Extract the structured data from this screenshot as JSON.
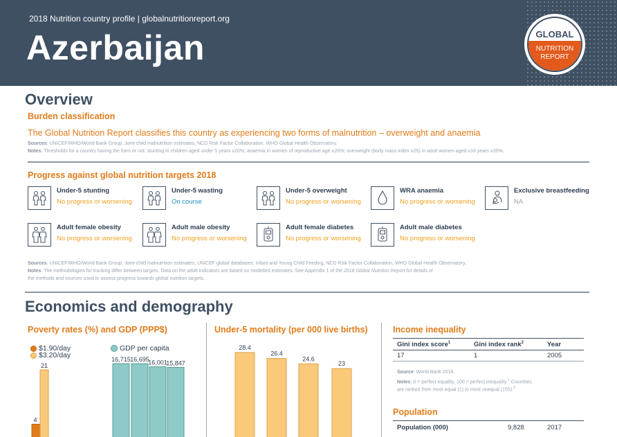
{
  "header": {
    "subtitle": "2018 Nutrition country profile  |  globalnutritionreport.org",
    "country": "Azerbaijan",
    "logo_top": "GLOBAL",
    "logo_mid": "NUTRITION",
    "logo_bot": "REPORT"
  },
  "overview": {
    "title": "Overview",
    "burden_heading": "Burden classification",
    "burden_text": "The Global Nutrition Report classifies this country as experiencing two forms of malnutrition – overweight and anaemia",
    "sources_label": "Sources",
    "sources_text": ": UNICEF/WHO/World Bank Group: Joint child malnutrition estimates, NCD Risk Factor Collaboration, WHO Global Health Observatory.",
    "notes_label": "Notes",
    "notes_text": ": Thresholds for a country having the form or not: stunting in children aged under 5 years ≥20%; anaemia in women of reproductive age ≥20%; overweight (body mass index ≥25) in adult women aged ≥18 years ≥35%.",
    "progress_heading": "Progress against global nutrition targets 2018",
    "targets": [
      {
        "name": "Under-5 stunting",
        "status": "No progress or worsening",
        "color": "#f0a020",
        "icon": "children-icon"
      },
      {
        "name": "Under-5 wasting",
        "status": "On course",
        "color": "#1f8fc4",
        "icon": "children-icon"
      },
      {
        "name": "Under-5 overweight",
        "status": "No progress or worsening",
        "color": "#f0a020",
        "icon": "children-icon"
      },
      {
        "name": "WRA anaemia",
        "status": "No progress or worsening",
        "color": "#f0a020",
        "icon": "blood-drop-icon"
      },
      {
        "name": "Exclusive breastfeeding",
        "status": "NA",
        "color": "#9aa4ae",
        "icon": "breastfeeding-icon"
      },
      {
        "name": "Adult female obesity",
        "status": "No progress or worsening",
        "color": "#f0a020",
        "icon": "adults-icon"
      },
      {
        "name": "Adult male obesity",
        "status": "No progress or worsening",
        "color": "#f0a020",
        "icon": "adults-icon"
      },
      {
        "name": "Adult female diabetes",
        "status": "No progress or worsening",
        "color": "#f0a020",
        "icon": "glucose-meter-icon"
      },
      {
        "name": "Adult male diabetes",
        "status": "No progress or worsening",
        "color": "#f0a020",
        "icon": "glucose-meter-icon"
      }
    ],
    "sources2_label": "Sources",
    "sources2_text": ": UNICEF/WHO/World Bank Group: Joint child malnutrition estimates, UNICEF global databases: Infant and Young Child Feeding, NCD Risk Factor Collaboration, WHO Global Health Observatory.",
    "notes2_label": "Notes",
    "notes2_text_a": ": The methodologies for tracking differ between targets. Data on the adult indicators are based on modelled estimates. See Appendix 1 of the ",
    "notes2_italic": "2018 Global Nutrition Report",
    "notes2_text_b": " for details of",
    "notes2_text_c": "the methods and sources used to assess progress towards global nutrition targets."
  },
  "economics": {
    "title": "Economics and demography",
    "poverty_heading": "Poverty rates (%) and GDP (PPP$)",
    "mortality_heading": "Under-5 mortality (per 000 live births)",
    "income_heading": "Income inequality",
    "population_heading": "Population"
  },
  "chart_data": [
    {
      "type": "bar",
      "title": "Poverty rates (%) and GDP (PPP$)",
      "series": [
        {
          "name": "$1.90/day",
          "values": [
            4
          ],
          "color": "#e07c1b"
        },
        {
          "name": "$3.20/day",
          "values": [
            21
          ],
          "color": "#fbc97a"
        }
      ],
      "gdp": {
        "name": "GDP per capita",
        "values": [
          16715,
          16695,
          16001,
          15847
        ],
        "labels": [
          "16,715",
          "16,695",
          "16,001",
          "15,847"
        ],
        "color": "#8ecbc8"
      }
    },
    {
      "type": "bar",
      "title": "Under-5 mortality (per 000 live births)",
      "values": [
        28.4,
        26.4,
        24.6,
        23
      ],
      "labels": [
        "28.4",
        "26.4",
        "24.6",
        "23"
      ],
      "color": "#fbc97a"
    }
  ],
  "income_table": {
    "headers": [
      "Gini index score",
      "Gini index rank",
      "Year"
    ],
    "header_sups": [
      "1",
      "2",
      ""
    ],
    "values": [
      "17",
      "1",
      "2005"
    ],
    "source_label": "Source",
    "source_text": ": World Bank 2018.",
    "notes_label": "Notes",
    "notes_text_a": ": 0 = perfect equality, 100 = perfect inequality.",
    "notes_sup_a": "1",
    "notes_text_b": " Countries",
    "notes_text_c": "are ranked from most equal (1) to most unequal (155).",
    "notes_sup_b": "2"
  },
  "population_table": {
    "label": "Population (000)",
    "value": "9,828",
    "year": "2017"
  }
}
